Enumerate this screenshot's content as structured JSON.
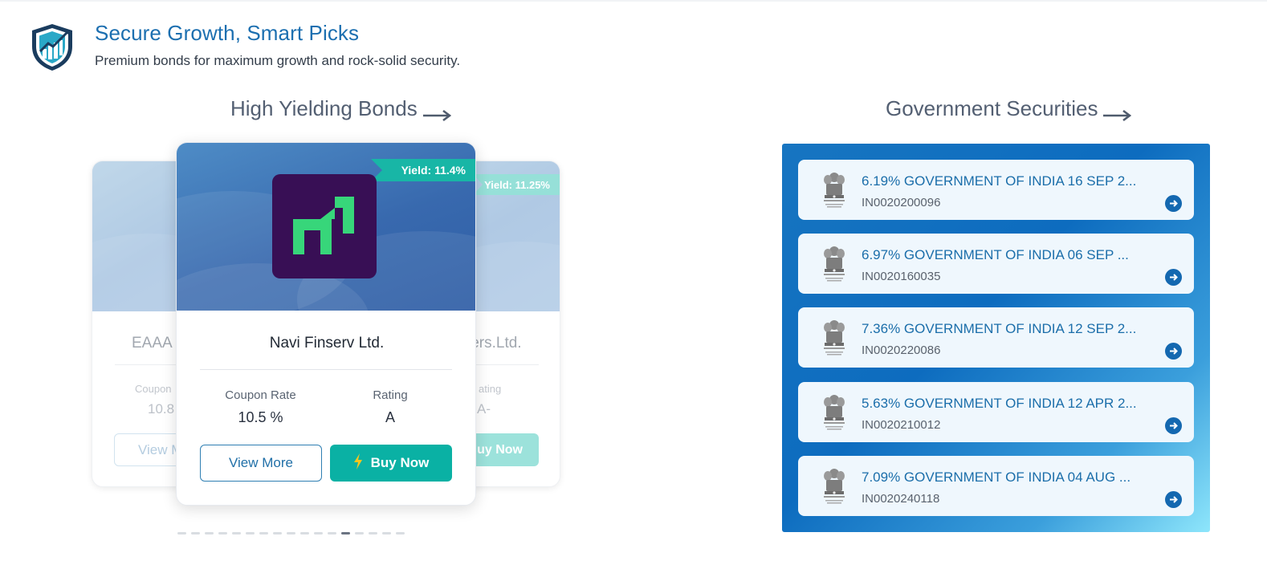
{
  "header": {
    "title": "Secure Growth, Smart Picks",
    "subtitle": "Premium bonds for maximum growth and rock-solid security.",
    "logo_icon": "shield-growth-icon"
  },
  "high_yield": {
    "title": "High Yielding Bonds",
    "cards": {
      "left": {
        "issuer": "EAAA I",
        "coupon_label": "Coupon",
        "coupon_value": "10.8",
        "view_more": "View M"
      },
      "main": {
        "yield": "Yield: 11.4%",
        "issuer": "Navi Finserv Ltd.",
        "coupon_label": "Coupon Rate",
        "coupon_value": "10.5 %",
        "rating_label": "Rating",
        "rating_value": "A",
        "view_more": "View More",
        "buy_now": "Buy Now",
        "logo_color": "#380f55",
        "logo_accent": "#37d67a"
      },
      "right": {
        "yield": "Yield: 11.25%",
        "issuer": "iers.Ltd.",
        "rating_label": "ating",
        "rating_value": "A-",
        "buy_now": "uy Now"
      }
    },
    "pagination": {
      "total": 17,
      "active_index": 12
    }
  },
  "gsec": {
    "title": "Government Securities",
    "items": [
      {
        "name": "6.19% GOVERNMENT OF INDIA 16 SEP 2...",
        "isin": "IN0020200096"
      },
      {
        "name": "6.97% GOVERNMENT OF INDIA 06 SEP ...",
        "isin": "IN0020160035"
      },
      {
        "name": "7.36% GOVERNMENT OF INDIA 12 SEP 2...",
        "isin": "IN0020220086"
      },
      {
        "name": "5.63% GOVERNMENT OF INDIA 12 APR 2...",
        "isin": "IN0020210012"
      },
      {
        "name": "7.09% GOVERNMENT OF INDIA 04 AUG ...",
        "isin": "IN0020240118"
      }
    ]
  },
  "colors": {
    "brand_blue": "#1c6fb0",
    "teal": "#0ab1a4",
    "panel_blue": "#0d6cbf"
  }
}
